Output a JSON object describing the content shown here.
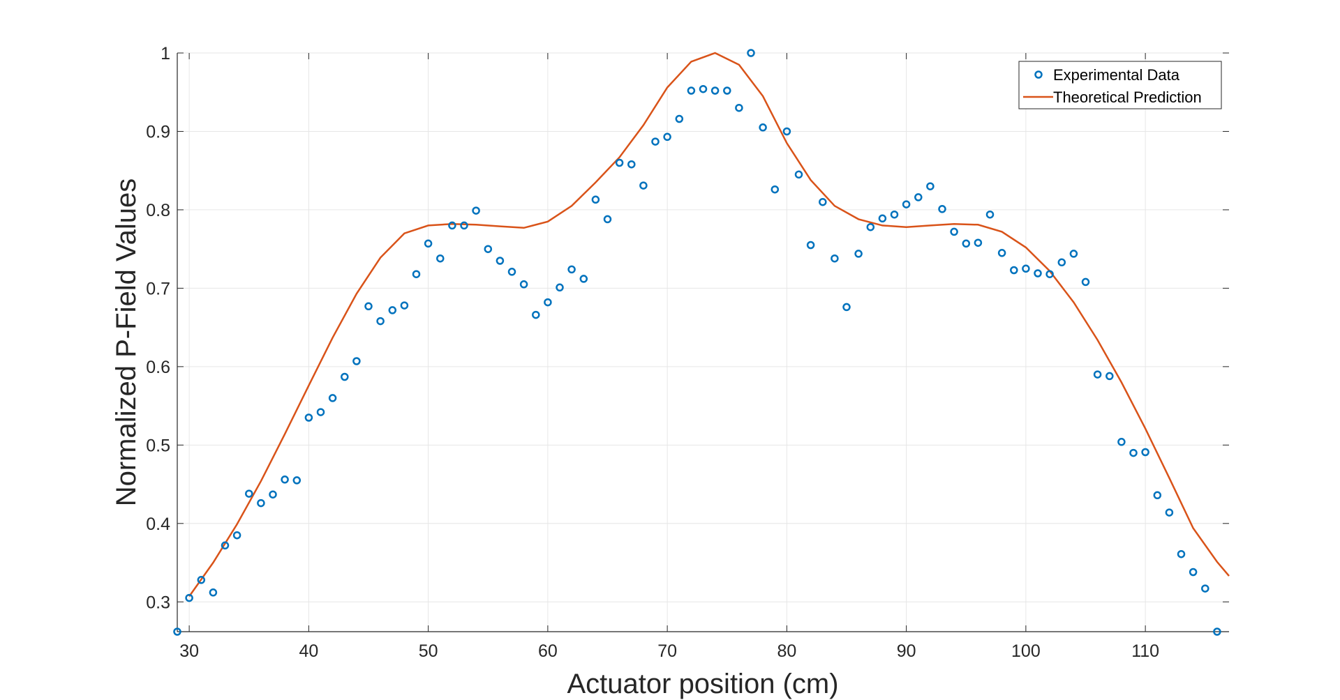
{
  "chart_data": {
    "type": "scatter",
    "xlabel": "Actuator position (cm)",
    "ylabel": "Normalized P-Field Values",
    "xlim": [
      29,
      117
    ],
    "ylim": [
      0.262,
      1.0
    ],
    "xticks": [
      30,
      40,
      50,
      60,
      70,
      80,
      90,
      100,
      110
    ],
    "yticks": [
      0.3,
      0.4,
      0.5,
      0.6,
      0.7,
      0.8,
      0.9,
      1
    ],
    "grid": true,
    "legend_position": "top-right",
    "colors": {
      "experimental": "#0072BD",
      "theoretical": "#D95319",
      "grid": "#e6e6e6",
      "axis": "#262626"
    },
    "series": [
      {
        "name": "Experimental Data",
        "type": "scatter",
        "marker": "circle",
        "x": [
          29,
          30,
          31,
          32,
          33,
          34,
          35,
          36,
          37,
          38,
          39,
          40,
          41,
          42,
          43,
          44,
          45,
          46,
          47,
          48,
          49,
          50,
          51,
          52,
          53,
          54,
          55,
          56,
          57,
          58,
          59,
          60,
          61,
          62,
          63,
          64,
          65,
          66,
          67,
          68,
          69,
          70,
          71,
          72,
          73,
          74,
          75,
          76,
          77,
          78,
          79,
          80,
          81,
          82,
          83,
          84,
          85,
          86,
          87,
          88,
          89,
          90,
          91,
          92,
          93,
          94,
          95,
          96,
          97,
          98,
          99,
          100,
          101,
          102,
          103,
          104,
          105,
          106,
          107,
          108,
          109,
          110,
          111,
          112,
          113,
          114,
          115,
          116
        ],
        "y": [
          0.262,
          0.305,
          0.328,
          0.312,
          0.372,
          0.385,
          0.438,
          0.426,
          0.437,
          0.456,
          0.455,
          0.535,
          0.542,
          0.56,
          0.587,
          0.607,
          0.677,
          0.658,
          0.672,
          0.678,
          0.718,
          0.757,
          0.738,
          0.78,
          0.78,
          0.799,
          0.75,
          0.735,
          0.721,
          0.705,
          0.666,
          0.682,
          0.701,
          0.724,
          0.712,
          0.813,
          0.788,
          0.86,
          0.858,
          0.831,
          0.887,
          0.893,
          0.916,
          0.952,
          0.954,
          0.952,
          0.952,
          0.93,
          1.0,
          0.905,
          0.826,
          0.9,
          0.845,
          0.755,
          0.81,
          0.738,
          0.676,
          0.744,
          0.778,
          0.789,
          0.794,
          0.807,
          0.816,
          0.83,
          0.801,
          0.772,
          0.757,
          0.758,
          0.794,
          0.745,
          0.723,
          0.725,
          0.719,
          0.718,
          0.733,
          0.744,
          0.708,
          0.59,
          0.588,
          0.504,
          0.49,
          0.491,
          0.436,
          0.414,
          0.361,
          0.338,
          0.317,
          0.262
        ]
      },
      {
        "name": "Theoretical Prediction",
        "type": "line",
        "x": [
          30,
          32,
          34,
          36,
          38,
          40,
          42,
          44,
          46,
          48,
          50,
          52,
          54,
          56,
          58,
          60,
          62,
          64,
          66,
          68,
          70,
          72,
          74,
          76,
          78,
          80,
          82,
          84,
          86,
          88,
          90,
          92,
          94,
          96,
          98,
          100,
          102,
          104,
          106,
          108,
          110,
          112,
          114,
          116,
          117
        ],
        "y": [
          0.307,
          0.35,
          0.399,
          0.454,
          0.514,
          0.576,
          0.637,
          0.693,
          0.739,
          0.77,
          0.78,
          0.782,
          0.781,
          0.779,
          0.777,
          0.785,
          0.805,
          0.835,
          0.867,
          0.908,
          0.956,
          0.989,
          1.0,
          0.985,
          0.945,
          0.885,
          0.838,
          0.805,
          0.788,
          0.78,
          0.778,
          0.78,
          0.782,
          0.781,
          0.772,
          0.752,
          0.722,
          0.682,
          0.634,
          0.58,
          0.521,
          0.458,
          0.394,
          0.351,
          0.333
        ]
      }
    ]
  }
}
